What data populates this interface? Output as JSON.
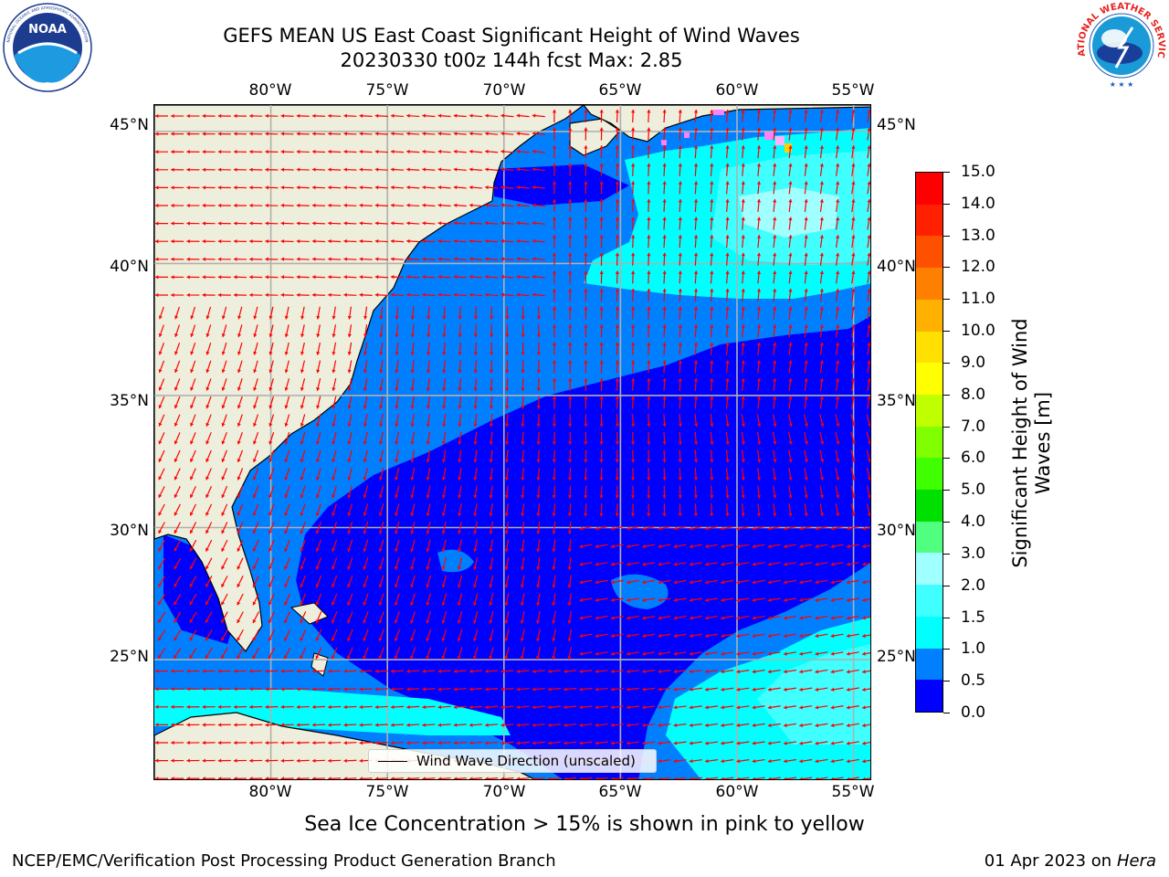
{
  "title": {
    "line1": "GEFS MEAN US East Coast Significant Height of Wind Waves",
    "line2": "20230330 t00z 144h fcst   Max: 2.85"
  },
  "map": {
    "lon_labels": [
      "80°W",
      "75°W",
      "70°W",
      "65°W",
      "60°W",
      "55°W"
    ],
    "lat_labels": [
      "45°N",
      "40°N",
      "35°N",
      "30°N",
      "25°N"
    ],
    "lon_values": [
      -80,
      -75,
      -70,
      -65,
      -60,
      -55
    ],
    "lat_values": [
      45,
      40,
      35,
      30,
      25
    ],
    "extent": {
      "lon_min": -85,
      "lon_max": -54.2,
      "lat_min": 20.4,
      "lat_max": 46
    },
    "land_color": "#eeeedc",
    "arrow_color": "#ff0000",
    "gridline_color": "#b0b0b0",
    "legend_label": "Wind Wave Direction (unscaled)"
  },
  "colorbar": {
    "title_line1": "Significant Height of Wind",
    "title_line2": "Waves [m]",
    "tick_labels": [
      "0.0",
      "0.5",
      "1.0",
      "1.5",
      "2.0",
      "3.0",
      "4.0",
      "5.0",
      "6.0",
      "7.0",
      "8.0",
      "9.0",
      "10.0",
      "11.0",
      "12.0",
      "13.0",
      "14.0",
      "15.0"
    ],
    "colors": [
      "#0000ff",
      "#0080ff",
      "#00ffff",
      "#40ffff",
      "#a0ffff",
      "#50ff80",
      "#00e000",
      "#40ff00",
      "#80ff00",
      "#c0ff00",
      "#ffff00",
      "#ffe000",
      "#ffb000",
      "#ff8000",
      "#ff5000",
      "#ff2000",
      "#ff0000"
    ]
  },
  "caption": "Sea Ice Concentration > 15% is shown in pink to yellow",
  "footer": {
    "left": "NCEP/EMC/Verification Post Processing Product Generation Branch",
    "right_date": "01 Apr 2023 on ",
    "right_host": "Hera"
  },
  "logos": {
    "noaa_text": "NOAA",
    "noaa_ring_text": "NATIONAL OCEANIC AND ATMOSPHERIC ADMINISTRATION",
    "nws_ring_text": "NATIONAL WEATHER SERVICE"
  }
}
